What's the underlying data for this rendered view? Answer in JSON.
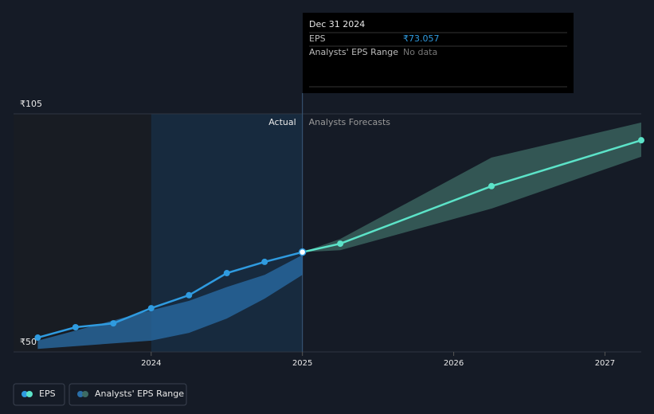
{
  "chart_data": {
    "type": "line",
    "xlim": [
      2023.09,
      2027.24
    ],
    "xticks": [
      2024,
      2025,
      2026,
      2027
    ],
    "ylim": [
      50,
      105
    ],
    "yticks": [
      {
        "value": 50,
        "label": "₹50"
      },
      {
        "value": 105,
        "label": "₹105"
      }
    ],
    "divider_x": 2025,
    "past_start": 2024,
    "actual_label": "Actual",
    "forecast_label": "Analysts Forecasts",
    "series": [
      {
        "name": "EPS",
        "color": "#2f9be0",
        "forecast_color": "#5ce3c8",
        "x": [
          2023.25,
          2023.5,
          2023.75,
          2024.0,
          2024.25,
          2024.5,
          2024.75,
          2025.0,
          2025.25,
          2026.25,
          2027.24
        ],
        "values": [
          53.3,
          55.7,
          56.6,
          60.1,
          63.1,
          68.2,
          70.8,
          73.057,
          75.0,
          88.3,
          98.9
        ]
      }
    ],
    "bands": [
      {
        "name": "Analysts' EPS Range",
        "color": "#2a6ea8",
        "x": [
          2023.25,
          2024.0,
          2024.25,
          2024.5,
          2024.75,
          2025.0
        ],
        "low": [
          50.7,
          52.6,
          54.4,
          57.7,
          62.3,
          67.8
        ],
        "high": [
          52.6,
          59.6,
          61.8,
          65.0,
          67.8,
          72.4
        ]
      },
      {
        "color": "#3d6b64",
        "x": [
          2025.0,
          2025.25,
          2026.25,
          2027.24
        ],
        "low": [
          73.057,
          73.5,
          83.1,
          95.1
        ],
        "high": [
          73.057,
          76.1,
          94.9,
          103.0
        ]
      }
    ],
    "tooltip": {
      "title": "Dec 31 2024",
      "rows": [
        {
          "label": "EPS",
          "value": "₹73.057"
        },
        {
          "label": "Analysts' EPS Range",
          "value": "No data"
        }
      ]
    }
  }
}
